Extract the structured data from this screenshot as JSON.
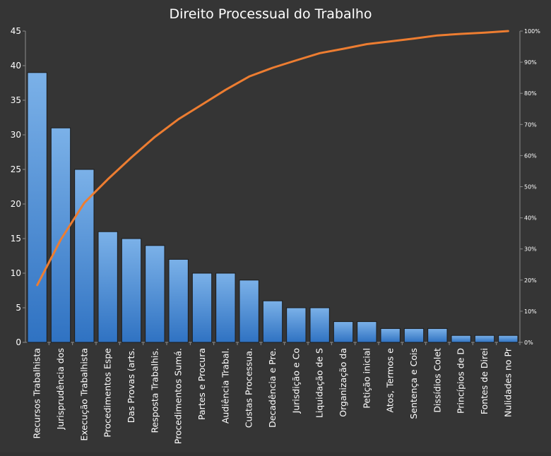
{
  "chart_data": {
    "type": "bar",
    "title": "Direito Processual do Trabalho",
    "categories": [
      "Recursos Trabalhista",
      "Jurisprudência dos",
      "Execução Trabalhista",
      "Procedimentos Espe",
      "Das Provas (arts.",
      "Resposta Trabalhis.",
      "Procedimentos Sumá.",
      "Partes e Procura",
      "Audiência Trabal.",
      "Custas Processua.",
      "Decadência e Pre.",
      "Jurisdição e Co",
      "Liquidação de S",
      "Organização da",
      "Petição inicial",
      "Atos, Termos e",
      "Sentença e Cois",
      "Dissídios Colet",
      "Princípios de D",
      "Fontes de Direi",
      "Nulidades no Pr"
    ],
    "series": [
      {
        "type": "bar",
        "axis": "left",
        "values": [
          39,
          31,
          25,
          16,
          15,
          14,
          12,
          10,
          10,
          9,
          6,
          5,
          5,
          3,
          3,
          2,
          2,
          2,
          1,
          1,
          1
        ]
      },
      {
        "type": "line",
        "axis": "right",
        "values": [
          18.4,
          33.0,
          44.8,
          52.4,
          59.4,
          66.0,
          71.7,
          76.4,
          81.1,
          85.4,
          88.2,
          90.6,
          92.9,
          94.3,
          95.8,
          96.7,
          97.6,
          98.6,
          99.1,
          99.5,
          100.0
        ]
      }
    ],
    "yleft": {
      "lim": [
        0,
        45
      ],
      "ticks": [
        "0",
        "5",
        "10",
        "15",
        "20",
        "25",
        "30",
        "35",
        "40",
        "45"
      ]
    },
    "yright": {
      "lim": [
        0,
        100
      ],
      "ticks": [
        "0%",
        "10%",
        "20%",
        "30%",
        "40%",
        "50%",
        "60%",
        "70%",
        "80%",
        "90%",
        "100%"
      ]
    },
    "grid": false,
    "legend": "none",
    "colors": {
      "background": "#353535",
      "bar_top": "#7bb1e8",
      "bar_bottom": "#2f72c2",
      "bar_edge": "#1b1b1b",
      "line": "#ed7d31",
      "axis": "#8a8a8a",
      "text": "#ffffff"
    }
  }
}
